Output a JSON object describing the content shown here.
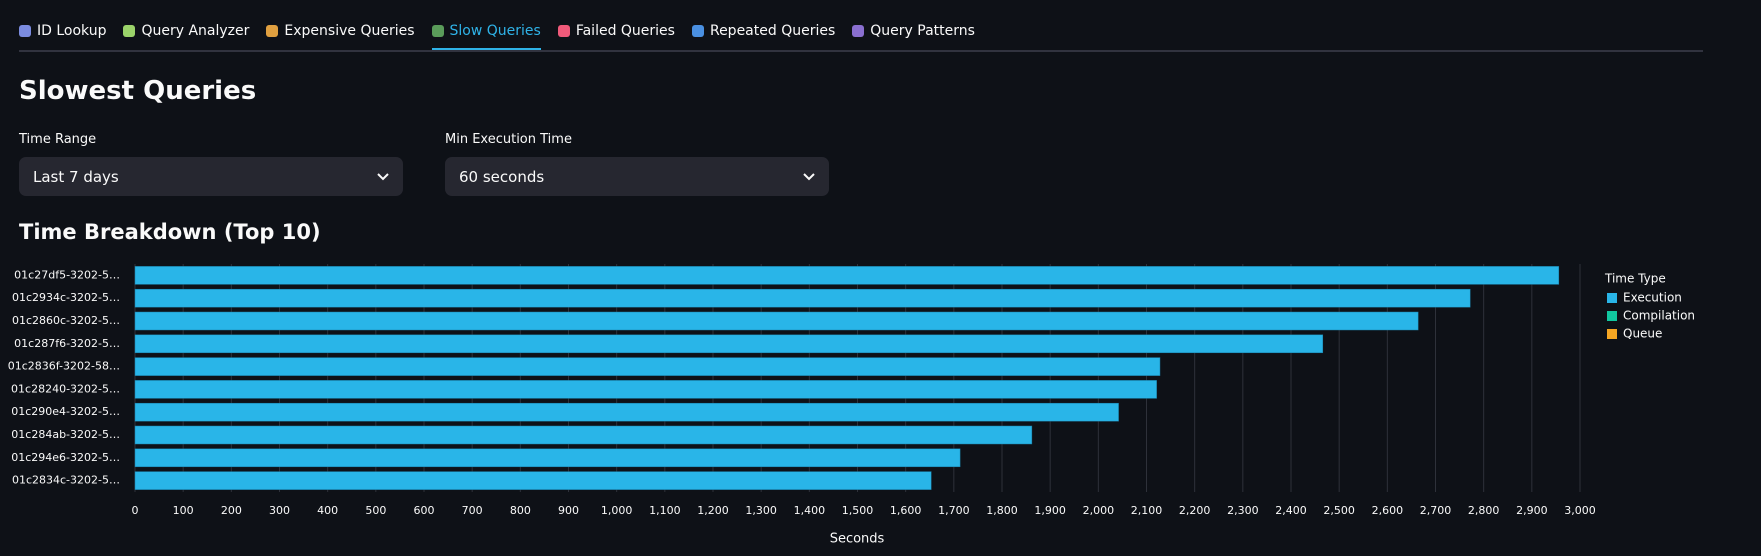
{
  "tabs": [
    "ID Lookup",
    "Query Analyzer",
    "Expensive Queries",
    "Slow Queries",
    "Failed Queries",
    "Repeated Queries",
    "Query Patterns"
  ],
  "page_title": "Slowest Queries",
  "filters": [
    {
      "label": "Time Range",
      "value": "Last 7 days"
    },
    {
      "label": "Min Execution Time",
      "value": "60 seconds"
    }
  ],
  "section_title": "Time Breakdown (Top 10)",
  "chart_data": {
    "type": "stacked_barh",
    "categories": [
      "01c27df5-3202-5…",
      "01c2934c-3202-5…",
      "01c2860c-3202-5…",
      "01c287f6-3202-5…",
      "01c2836f-3202-58…",
      "01c28240-3202-5…",
      "01c290e4-3202-5…",
      "01c284ab-3202-5…",
      "01c294e6-3202-5…",
      "01c2834c-3202-5…"
    ],
    "series": [
      {
        "name": "Execution",
        "color": "#29b5e8",
        "values": [
          2956,
          2772,
          2664,
          2466,
          2128,
          2121,
          2042,
          1862,
          1713,
          1653
        ]
      },
      {
        "name": "Compilation",
        "color": "#11c7a0",
        "values": [
          0,
          0,
          0,
          0,
          0,
          0,
          0,
          0,
          0,
          0
        ]
      },
      {
        "name": "Queue",
        "color": "#f5a623",
        "values": [
          0,
          0,
          0,
          0,
          0,
          0,
          0,
          0,
          0,
          0
        ]
      }
    ],
    "xlabel": "Seconds",
    "legend_title": "Time Type",
    "xlim": [
      0,
      3000
    ],
    "xticks": [
      0,
      100,
      200,
      300,
      400,
      500,
      600,
      700,
      800,
      900,
      {
        "value": 1000,
        "label": "1,000"
      },
      {
        "value": 1100,
        "label": "1,100"
      },
      {
        "value": 1200,
        "label": "1,200"
      },
      {
        "value": 1300,
        "label": "1,300"
      },
      {
        "value": 1400,
        "label": "1,400"
      },
      {
        "value": 1500,
        "label": "1,500"
      },
      {
        "value": 1600,
        "label": "1,600"
      },
      {
        "value": 1700,
        "label": "1,700"
      },
      {
        "value": 1800,
        "label": "1,800"
      },
      {
        "value": 1900,
        "label": "1,900"
      },
      {
        "value": 2000,
        "label": "2,000"
      },
      {
        "value": 2100,
        "label": "2,100"
      },
      {
        "value": 2200,
        "label": "2,200"
      },
      {
        "value": 2300,
        "label": "2,300"
      },
      {
        "value": 2400,
        "label": "2,400"
      },
      {
        "value": 2500,
        "label": "2,500"
      },
      {
        "value": 2600,
        "label": "2,600"
      },
      {
        "value": 2700,
        "label": "2,700"
      },
      {
        "value": 2800,
        "label": "2,800"
      },
      {
        "value": 2900,
        "label": "2,900"
      },
      {
        "value": 3000,
        "label": "3,000"
      }
    ],
    "grid": true,
    "legend": "right"
  }
}
